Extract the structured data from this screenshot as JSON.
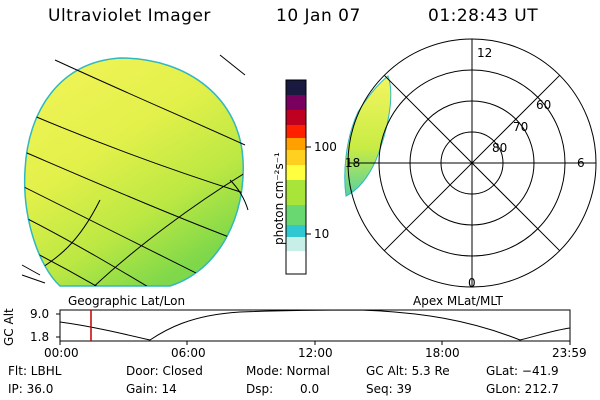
{
  "header": {
    "title": "Ultraviolet Imager",
    "date": "10 Jan 07",
    "time": "01:28:43 UT"
  },
  "panels": {
    "left_label": "Geographic Lat/Lon",
    "right_label": "Apex MLat/MLT"
  },
  "colorbar": {
    "unit_label": "photon cm⁻²s⁻¹",
    "ticks": [
      "100",
      "10"
    ],
    "colors": [
      "#ffffff",
      "#30c8d0",
      "#9be03a",
      "#ffff40",
      "#ffa000",
      "#ff2000",
      "#b00020",
      "#6a0060",
      "#1a1a40"
    ]
  },
  "polar": {
    "mlt_labels": [
      "12",
      "18",
      "6",
      "0"
    ],
    "lat_labels": [
      "60",
      "70",
      "80"
    ]
  },
  "altitude_plot": {
    "ylabel": "GC Alt",
    "yticks": [
      "9.0",
      "1.8"
    ],
    "xticks": [
      "00:00",
      "06:00",
      "12:00",
      "18:00",
      "23:59"
    ],
    "current_time_marker_color": "#c00000"
  },
  "info": {
    "flt": "Flt: LBHL",
    "door": "Door: Closed",
    "mode": "Mode: Normal",
    "gc_alt": "GC Alt: 5.3 Re",
    "glat": "GLat: −41.9",
    "ip": "IP: 36.0",
    "gain": "Gain: 14",
    "dsp_label": "Dsp:",
    "dsp_value": "0.0",
    "seq": "Seq: 39",
    "glon": "GLon: 212.7"
  }
}
